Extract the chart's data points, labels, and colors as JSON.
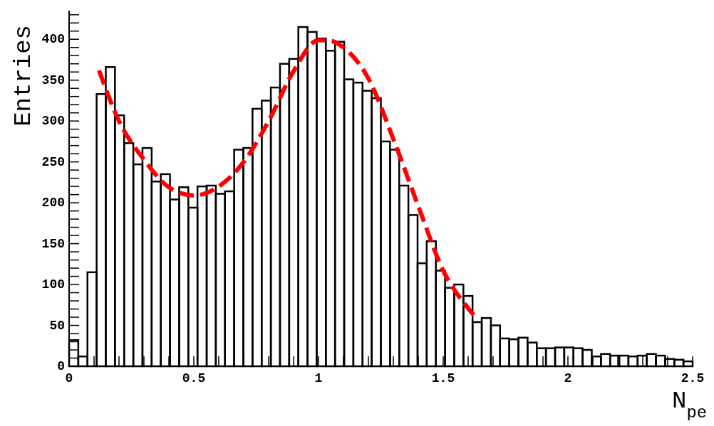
{
  "chart_data": {
    "type": "histogram",
    "xlabel": "N$_{pe}$",
    "ylabel": "Entries",
    "bins": [
      0,
      0.0368,
      0.0735,
      0.1103,
      0.1471,
      0.1838,
      0.2206,
      0.2574,
      0.2941,
      0.3309,
      0.3676,
      0.4044,
      0.4412,
      0.4779,
      0.5147,
      0.5515,
      0.5882,
      0.625,
      0.6618,
      0.6985,
      0.7353,
      0.7721,
      0.8088,
      0.8456,
      0.8824,
      0.9191,
      0.9559,
      0.9926,
      1.0294,
      1.0662,
      1.1029,
      1.1397,
      1.1765,
      1.2132,
      1.25,
      1.2868,
      1.3235,
      1.3603,
      1.3971,
      1.4338,
      1.4706,
      1.5074,
      1.5441,
      1.5809,
      1.6176,
      1.6544,
      1.6912,
      1.7279,
      1.7647,
      1.8015,
      1.8382,
      1.875,
      1.9118,
      1.9485,
      1.9853,
      2.0221,
      2.0588,
      2.0956,
      2.1324,
      2.1691,
      2.2059,
      2.2426,
      2.2794,
      2.3162,
      2.3529,
      2.3897,
      2.4265,
      2.4632,
      2.5
    ],
    "series": [
      {
        "color": "#000000",
        "values": [
          32,
          12,
          115,
          333,
          366,
          307,
          273,
          247,
          267,
          226,
          235,
          204,
          219,
          194,
          220,
          221,
          211,
          214,
          265,
          267,
          315,
          325,
          341,
          370,
          376,
          415,
          409,
          401,
          386,
          397,
          351,
          347,
          337,
          328,
          275,
          265,
          221,
          185,
          126,
          153,
          117,
          96,
          100,
          86,
          54,
          59,
          50,
          34,
          33,
          35,
          29,
          22,
          22,
          23,
          23,
          22,
          20,
          12,
          15,
          13,
          13,
          12,
          13,
          15,
          13,
          9,
          8,
          6
        ]
      },
      {
        "type": "line",
        "color": "#ff0000",
        "line_style": "dashed",
        "marker": "none",
        "x": [
          0.12,
          0.2,
          0.3,
          0.4,
          0.5,
          0.6,
          0.7,
          0.8,
          0.9,
          1.0,
          1.05,
          1.1,
          1.2,
          1.3,
          1.4,
          1.5,
          1.6,
          1.63
        ],
        "values": [
          362,
          300,
          253,
          219,
          209,
          220,
          250,
          300,
          361,
          399,
          398,
          390,
          352,
          278,
          196,
          117,
          71,
          60
        ]
      }
    ],
    "xlim": [
      0,
      2.5
    ],
    "xticks": [
      0,
      {
        "value": 0.1,
        "label": null
      },
      {
        "value": 0.2,
        "label": null
      },
      {
        "value": 0.3,
        "label": null
      },
      {
        "value": 0.4,
        "label": null
      },
      0.5,
      {
        "value": 0.6,
        "label": null
      },
      {
        "value": 0.7,
        "label": null
      },
      {
        "value": 0.8,
        "label": null
      },
      {
        "value": 0.9,
        "label": null
      },
      1,
      {
        "value": 1.1,
        "label": null
      },
      {
        "value": 1.2,
        "label": null
      },
      {
        "value": 1.3,
        "label": null
      },
      {
        "value": 1.4,
        "label": null
      },
      1.5,
      {
        "value": 1.6,
        "label": null
      },
      {
        "value": 1.7,
        "label": null
      },
      {
        "value": 1.8,
        "label": null
      },
      {
        "value": 1.9,
        "label": null
      },
      2,
      {
        "value": 2.1,
        "label": null
      },
      {
        "value": 2.2,
        "label": null
      },
      {
        "value": 2.3,
        "label": null
      },
      {
        "value": 2.4,
        "label": null
      },
      2.5
    ],
    "ylim": [
      0,
      435
    ],
    "yticks": [
      0,
      {
        "value": 10,
        "label": null
      },
      {
        "value": 20,
        "label": null
      },
      {
        "value": 30,
        "label": null
      },
      {
        "value": 40,
        "label": null
      },
      50,
      {
        "value": 60,
        "label": null
      },
      {
        "value": 70,
        "label": null
      },
      {
        "value": 80,
        "label": null
      },
      {
        "value": 90,
        "label": null
      },
      100,
      {
        "value": 110,
        "label": null
      },
      {
        "value": 120,
        "label": null
      },
      {
        "value": 130,
        "label": null
      },
      {
        "value": 140,
        "label": null
      },
      150,
      {
        "value": 160,
        "label": null
      },
      {
        "value": 170,
        "label": null
      },
      {
        "value": 180,
        "label": null
      },
      {
        "value": 190,
        "label": null
      },
      200,
      {
        "value": 210,
        "label": null
      },
      {
        "value": 220,
        "label": null
      },
      {
        "value": 230,
        "label": null
      },
      {
        "value": 240,
        "label": null
      },
      250,
      {
        "value": 260,
        "label": null
      },
      {
        "value": 270,
        "label": null
      },
      {
        "value": 280,
        "label": null
      },
      {
        "value": 290,
        "label": null
      },
      300,
      {
        "value": 310,
        "label": null
      },
      {
        "value": 320,
        "label": null
      },
      {
        "value": 330,
        "label": null
      },
      {
        "value": 340,
        "label": null
      },
      350,
      {
        "value": 360,
        "label": null
      },
      {
        "value": 370,
        "label": null
      },
      {
        "value": 380,
        "label": null
      },
      {
        "value": 390,
        "label": null
      },
      400,
      {
        "value": 410,
        "label": null
      },
      {
        "value": 420,
        "label": null
      },
      {
        "value": 430,
        "label": null
      }
    ]
  }
}
